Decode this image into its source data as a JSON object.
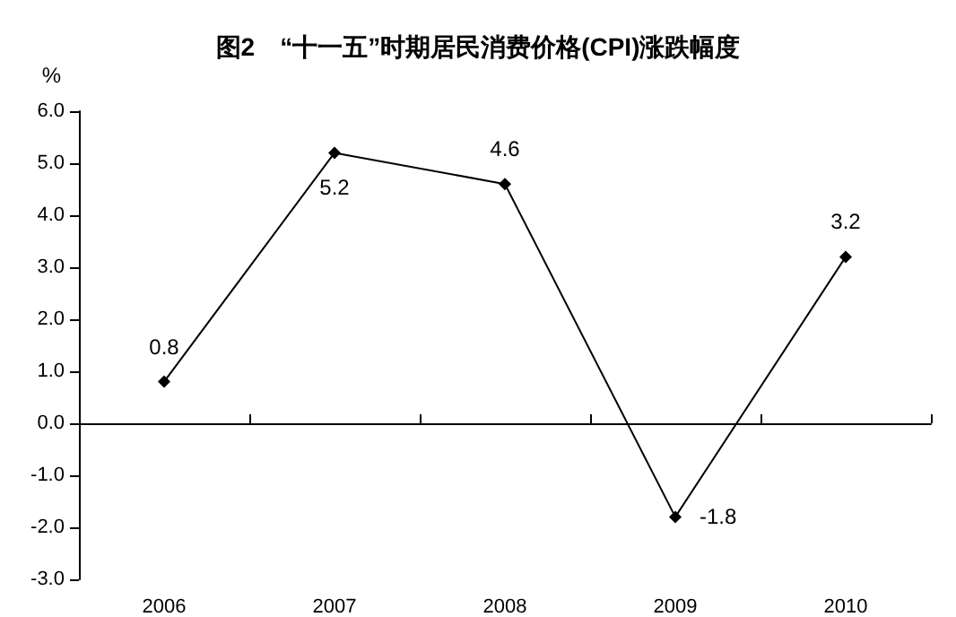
{
  "chart_data": {
    "type": "line",
    "title": "图2　“十一五”时期居民消费价格(CPI)涨跌幅度",
    "ylabel": "%",
    "categories": [
      "2006",
      "2007",
      "2008",
      "2009",
      "2010"
    ],
    "series": [
      {
        "color": "#000000",
        "values": [
          0.8,
          5.2,
          4.6,
          -1.8,
          3.2
        ]
      }
    ],
    "ylim": [
      -3,
      6
    ],
    "yticks": [
      {
        "value": -3,
        "label": "-3.0"
      },
      {
        "value": -2,
        "label": "-2.0"
      },
      {
        "value": -1,
        "label": "-1.0"
      },
      {
        "value": 0,
        "label": "0.0"
      },
      {
        "value": 1,
        "label": "1.0"
      },
      {
        "value": 2,
        "label": "2.0"
      },
      {
        "value": 3,
        "label": "3.0"
      },
      {
        "value": 4,
        "label": "4.0"
      },
      {
        "value": 5,
        "label": "5.0"
      },
      {
        "value": 6,
        "label": "6.0"
      }
    ],
    "data_labels": true,
    "marker": "diamond",
    "line_style": "solid"
  }
}
